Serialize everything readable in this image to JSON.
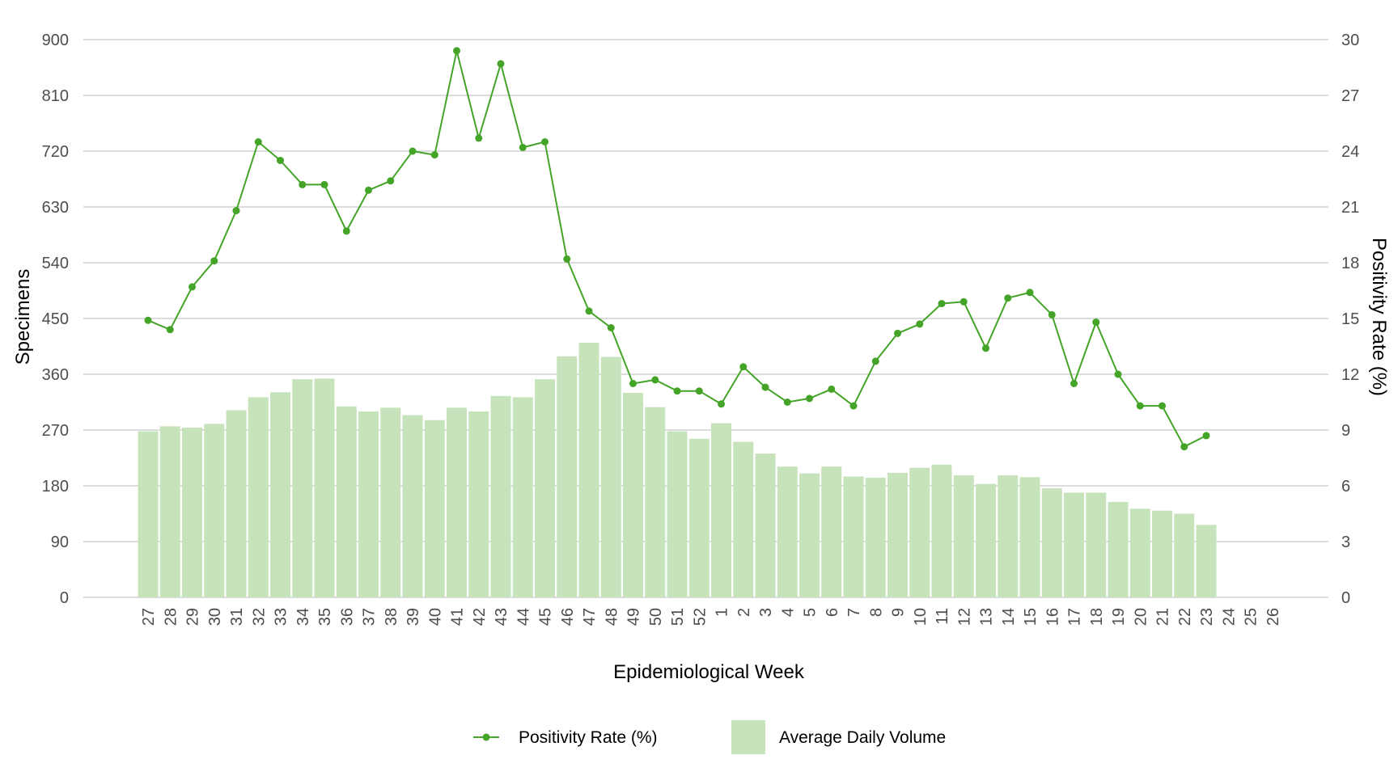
{
  "chart_data": {
    "type": "bar+line",
    "x_label": "Epidemiological Week",
    "y_left_label": "Specimens",
    "y_right_label": "Positivity Rate (%)",
    "y_left_range": [
      0,
      900
    ],
    "y_left_ticks": [
      "0",
      "90",
      "180",
      "270",
      "360",
      "450",
      "540",
      "630",
      "720",
      "810",
      "900"
    ],
    "y_right_range": [
      0,
      30
    ],
    "y_right_ticks": [
      "0",
      "3",
      "6",
      "9",
      "12",
      "15",
      "18",
      "21",
      "24",
      "27",
      "30"
    ],
    "grid": "horizontal",
    "legend_position": "bottom",
    "categories": [
      "27",
      "28",
      "29",
      "30",
      "31",
      "32",
      "33",
      "34",
      "35",
      "36",
      "37",
      "38",
      "39",
      "40",
      "41",
      "42",
      "43",
      "44",
      "45",
      "46",
      "47",
      "48",
      "49",
      "50",
      "51",
      "52",
      "1",
      "2",
      "3",
      "4",
      "5",
      "6",
      "7",
      "8",
      "9",
      "10",
      "11",
      "12",
      "13",
      "14",
      "15",
      "16",
      "17",
      "18",
      "19",
      "20",
      "21",
      "22",
      "23",
      "24",
      "25",
      "26"
    ],
    "series": [
      {
        "name": "Average Daily Volume",
        "kind": "bar",
        "axis": "left",
        "color": "#c7e3bc",
        "values": [
          268,
          276,
          274,
          280,
          302,
          323,
          331,
          352,
          353,
          308,
          300,
          306,
          294,
          286,
          306,
          300,
          325,
          323,
          352,
          389,
          411,
          388,
          330,
          307,
          268,
          256,
          281,
          251,
          232,
          211,
          200,
          211,
          195,
          193,
          201,
          209,
          214,
          197,
          183,
          197,
          194,
          176,
          169,
          169,
          154,
          143,
          140,
          135,
          117,
          null,
          null,
          null
        ]
      },
      {
        "name": "Positivity Rate (%)",
        "kind": "line",
        "axis": "right",
        "color": "#43a427",
        "values": [
          14.9,
          14.4,
          16.7,
          18.1,
          20.8,
          24.5,
          23.5,
          22.2,
          22.2,
          19.7,
          21.9,
          22.4,
          24.0,
          23.8,
          29.4,
          24.7,
          28.7,
          24.2,
          24.5,
          18.2,
          15.4,
          14.5,
          11.5,
          11.7,
          11.1,
          11.1,
          10.4,
          12.4,
          11.3,
          10.5,
          10.7,
          11.2,
          10.3,
          12.7,
          14.2,
          14.7,
          15.8,
          15.9,
          13.4,
          16.1,
          16.4,
          15.2,
          11.5,
          14.8,
          12.0,
          10.3,
          10.3,
          8.1,
          8.7,
          null,
          null,
          null
        ]
      }
    ]
  }
}
